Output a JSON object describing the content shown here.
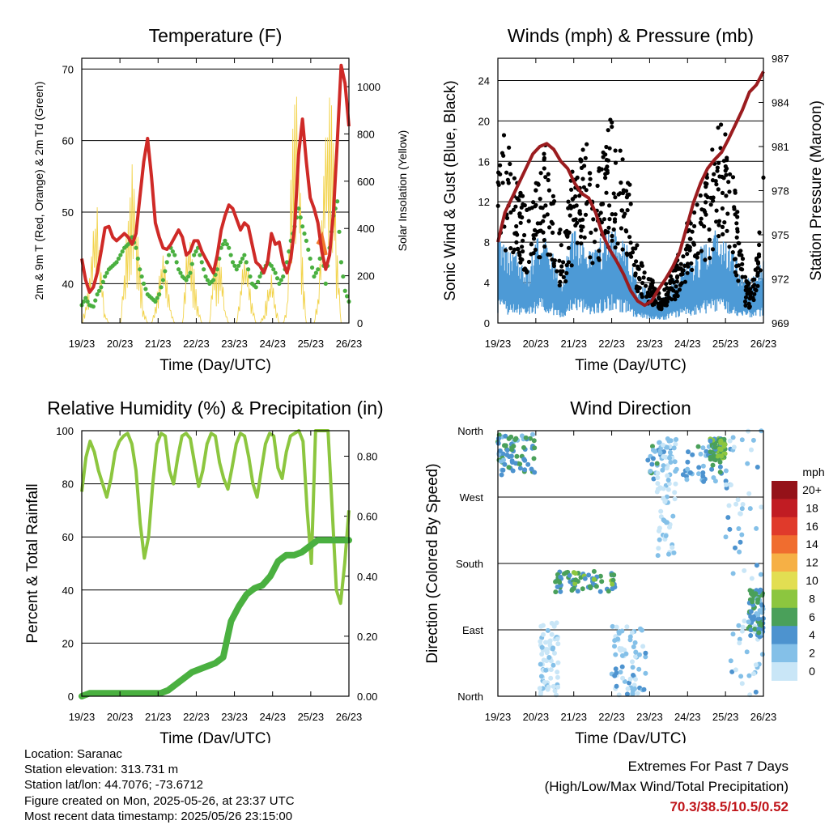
{
  "chart_data": [
    {
      "type": "line",
      "title": "Temperature (F)",
      "xlabel": "Time (Day/UTC)",
      "ylabel": "2m & 9m T (Red, Orange) & 2m Td (Green)",
      "y2label": "Solar Insolation (Yellow)",
      "x_ticks": [
        "19/23",
        "20/23",
        "21/23",
        "22/23",
        "23/23",
        "24/23",
        "25/23",
        "26/23"
      ],
      "ylim": [
        34.5,
        71.5
      ],
      "y_ticks": [
        40,
        50,
        60,
        70
      ],
      "y2lim": [
        0,
        1120
      ],
      "y2_ticks": [
        0,
        200,
        400,
        600,
        800,
        1000
      ],
      "grid": "horizontal",
      "series": [
        {
          "color": "#cf2a27",
          "values": [
            43.5,
            40.5,
            38.8,
            39.5,
            41.5,
            44.5,
            47.8,
            48,
            46.5,
            46,
            46.5,
            47,
            46.5,
            45.5,
            47,
            52,
            57,
            60.3,
            55,
            48.5,
            46.5,
            45,
            44.8,
            45.5,
            46.5,
            47.5,
            46.5,
            44,
            44.5,
            46,
            46,
            44.5,
            43.5,
            42.5,
            41.5,
            44,
            47.5,
            49.5,
            51,
            50.5,
            49,
            47.5,
            48.5,
            48,
            45.5,
            43,
            42.5,
            41.5,
            43,
            47,
            45.5,
            45.8,
            43,
            41.5,
            43.5,
            48,
            58,
            63,
            57,
            52,
            50.5,
            48.5,
            44.5,
            42,
            44,
            50,
            60,
            70.5,
            68,
            62
          ]
        },
        {
          "color": "#f0772c",
          "values": [
            null,
            null,
            null,
            null,
            null,
            null,
            null,
            null,
            null,
            null,
            null,
            null,
            null,
            null,
            null,
            null,
            null,
            null,
            null,
            null,
            null,
            null,
            null,
            null,
            null,
            null,
            null,
            null,
            null,
            null,
            null,
            null,
            null,
            null,
            null,
            null,
            null,
            null,
            null,
            null,
            null,
            null,
            null,
            null,
            null,
            null,
            null,
            null,
            null,
            null,
            null,
            null,
            null,
            null,
            null,
            null,
            null,
            null,
            null,
            null,
            null,
            45.5,
            46.5,
            44,
            null,
            null,
            null,
            null,
            null,
            null
          ]
        },
        {
          "color": "#4ab040",
          "values": [
            37,
            38,
            37,
            36.8,
            38.5,
            39.5,
            41,
            42,
            42.5,
            43,
            44,
            45,
            45.5,
            46.5,
            45,
            42,
            40,
            38.5,
            38,
            37.5,
            38.5,
            40.5,
            43,
            45,
            44,
            42,
            41,
            40.5,
            41.5,
            44,
            45,
            43,
            41,
            40,
            40.5,
            42,
            45,
            46,
            45,
            43,
            42,
            43,
            44,
            42,
            40,
            39.5,
            41,
            42,
            43,
            42.5,
            41.5,
            40,
            41,
            43,
            46,
            48,
            50.5,
            48,
            46,
            43.5,
            41,
            42,
            45,
            40,
            45,
            49.5,
            51.5,
            43,
            39,
            37.5
          ]
        },
        {
          "color": "#f2d34b",
          "values": [
            0,
            80,
            200,
            420,
            520,
            240,
            40,
            0,
            0,
            0,
            0,
            230,
            520,
            680,
            520,
            280,
            60,
            0,
            0,
            80,
            220,
            320,
            200,
            60,
            0,
            0,
            0,
            300,
            420,
            230,
            80,
            0,
            0,
            0,
            240,
            380,
            280,
            60,
            0,
            0,
            0,
            170,
            320,
            240,
            100,
            0,
            0,
            40,
            150,
            210,
            90,
            0,
            0,
            80,
            640,
            1100,
            820,
            300,
            0,
            0,
            0,
            120,
            480,
            900,
            1050,
            900,
            300,
            0,
            0,
            0
          ]
        }
      ]
    },
    {
      "type": "scatter",
      "title": "Winds (mph) & Pressure (mb)",
      "xlabel": "Time (Day/UTC)",
      "ylabel": "Sonic Wind & Gust (Blue, Black)",
      "y2label": "Station Pressure (Maroon)",
      "x_ticks": [
        "19/23",
        "20/23",
        "21/23",
        "22/23",
        "23/23",
        "24/23",
        "25/23",
        "26/23"
      ],
      "ylim": [
        0,
        26.2
      ],
      "y_ticks": [
        0,
        4,
        8,
        12,
        16,
        20,
        24
      ],
      "y2lim": [
        969,
        987
      ],
      "y2_ticks": [
        969,
        972,
        975,
        978,
        981,
        984,
        987
      ],
      "grid": "horizontal",
      "series": [
        {
          "name": "wind",
          "color": "#4d9ad6",
          "values": [
            5,
            4.5,
            4,
            4,
            3.5,
            3,
            4,
            5,
            4.8,
            4.5,
            3,
            2.5,
            4.5,
            5.5,
            5,
            4.5,
            4,
            4.5,
            5,
            5.8,
            5.5,
            5,
            4.5,
            3,
            2,
            2,
            1.8,
            1.5,
            1.5,
            2,
            2.5,
            3,
            3.5,
            3.5,
            4,
            4.5,
            5,
            5.5,
            5,
            4.5,
            4,
            3,
            2.5,
            2.5,
            3,
            3.5
          ]
        },
        {
          "name": "gust",
          "color": "#000000",
          "values": [
            11,
            13,
            12,
            10,
            9,
            8,
            9.5,
            11,
            12.5,
            11,
            7,
            6,
            9,
            11.5,
            12,
            13,
            10.5,
            11,
            12.5,
            14,
            13.5,
            12,
            11,
            7,
            4.5,
            3.5,
            3,
            2.5,
            2.5,
            3,
            4,
            5.5,
            7,
            8,
            8.5,
            10,
            11.5,
            13,
            14,
            12,
            10,
            6,
            3,
            2.5,
            5,
            10
          ]
        },
        {
          "name": "pressure",
          "color": "#9b1c1f",
          "values": [
            974.5,
            976.5,
            977.5,
            978.5,
            979.5,
            980.5,
            981,
            981.2,
            980.8,
            980,
            979.5,
            978.5,
            977.8,
            977.5,
            976.5,
            975,
            974,
            973.2,
            972.3,
            971.2,
            970.5,
            970.2,
            970.5,
            971.3,
            972,
            972.8,
            973.8,
            975.5,
            977.2,
            978.5,
            979.5,
            980.1,
            980.6,
            981.5,
            982.5,
            983.5,
            984.7,
            985.2,
            986.1
          ]
        }
      ]
    },
    {
      "type": "line",
      "title": "Relative Humidity (%) & Precipitation (in)",
      "xlabel": "Time (Day/UTC)",
      "ylabel": "Percent & Total Rainfall",
      "x_ticks": [
        "19/23",
        "20/23",
        "21/23",
        "22/23",
        "23/23",
        "24/23",
        "25/23",
        "26/23"
      ],
      "ylim": [
        0,
        100
      ],
      "y_ticks": [
        0,
        20,
        40,
        60,
        80,
        100
      ],
      "y2lim": [
        0,
        0.885
      ],
      "y2_ticks": [
        "0.00",
        "0.20",
        "0.40",
        "0.60",
        "0.80"
      ],
      "grid": "horizontal",
      "series": [
        {
          "name": "rh",
          "color": "#8cc63f",
          "values": [
            77,
            90,
            96,
            92,
            85,
            80,
            75,
            82,
            92,
            96,
            98,
            99,
            95,
            85,
            65,
            52,
            60,
            80,
            95,
            99,
            98,
            85,
            80,
            90,
            98,
            99,
            97,
            88,
            79,
            85,
            95,
            99,
            98,
            88,
            82,
            78,
            86,
            95,
            99,
            98,
            90,
            80,
            75,
            85,
            95,
            99,
            98,
            86,
            82,
            92,
            98,
            99,
            100,
            96,
            70,
            50,
            100,
            100,
            100,
            100,
            70,
            40,
            35,
            50,
            70
          ]
        },
        {
          "name": "precip",
          "color": "#4ab040",
          "values": [
            0,
            0.01,
            0.01,
            0.01,
            0.01,
            0.01,
            0.01,
            0.01,
            0.01,
            0.01,
            0.01,
            0.02,
            0.04,
            0.06,
            0.08,
            0.09,
            0.1,
            0.11,
            0.13,
            0.25,
            0.3,
            0.34,
            0.36,
            0.37,
            0.4,
            0.45,
            0.47,
            0.47,
            0.48,
            0.5,
            0.52,
            0.52,
            0.52,
            0.52,
            0.52
          ]
        }
      ]
    },
    {
      "type": "scatter",
      "title": "Wind Direction",
      "xlabel": "Time (Day/UTC)",
      "ylabel": "Direction (Colored By Speed)",
      "x_ticks": [
        "19/23",
        "20/23",
        "21/23",
        "22/23",
        "23/23",
        "24/23",
        "25/23",
        "26/23"
      ],
      "y_ticks": [
        "North",
        "East",
        "South",
        "West",
        "North"
      ],
      "ylim": [
        0,
        360
      ],
      "grid": "horizontal",
      "colorbar": {
        "title": "mph",
        "labels": [
          "0",
          "2",
          "4",
          "6",
          "8",
          "10",
          "12",
          "14",
          "16",
          "18",
          "20+"
        ],
        "colors": [
          "#c9e6f7",
          "#84c0e8",
          "#4d93cf",
          "#4aa05a",
          "#8cc63f",
          "#e2de52",
          "#f6b045",
          "#f06d2f",
          "#e03a2b",
          "#c11c23",
          "#951219"
        ]
      },
      "clusters": [
        {
          "day": [
            0,
            1
          ],
          "dir": [
            300,
            355
          ],
          "speed": 5
        },
        {
          "day": [
            1.1,
            1.6
          ],
          "dir": [
            0,
            100
          ],
          "speed": 1
        },
        {
          "day": [
            1.5,
            3.1
          ],
          "dir": [
            140,
            170
          ],
          "speed": 6
        },
        {
          "day": [
            3.0,
            3.9
          ],
          "dir": [
            0,
            95
          ],
          "speed": 2
        },
        {
          "day": [
            3.9,
            6.2
          ],
          "dir": [
            290,
            340
          ],
          "speed": 4
        },
        {
          "day": [
            4.2,
            4.7
          ],
          "dir": [
            185,
            350
          ],
          "speed": 1
        },
        {
          "day": [
            5.6,
            6.0
          ],
          "dir": [
            320,
            350
          ],
          "speed": 7
        },
        {
          "day": [
            6.0,
            7.0
          ],
          "dir": [
            0,
            360
          ],
          "speed": 2
        },
        {
          "day": [
            6.6,
            7.0
          ],
          "dir": [
            80,
            150
          ],
          "speed": 5
        }
      ]
    }
  ],
  "info": {
    "location": "Location: Saranac",
    "elevation": "Station elevation: 313.731 m",
    "latlon": "Station lat/lon: 44.7076; -73.6712",
    "created": "Figure created on Mon, 2025-05-26, at 23:37 UTC",
    "recent": "Most recent data timestamp: 2025/05/26 23:15:00"
  },
  "extremes": {
    "title": "Extremes For Past 7 Days",
    "subtitle": "(High/Low/Max Wind/Total Precipitation)",
    "values": "70.3/38.5/10.5/0.52"
  }
}
